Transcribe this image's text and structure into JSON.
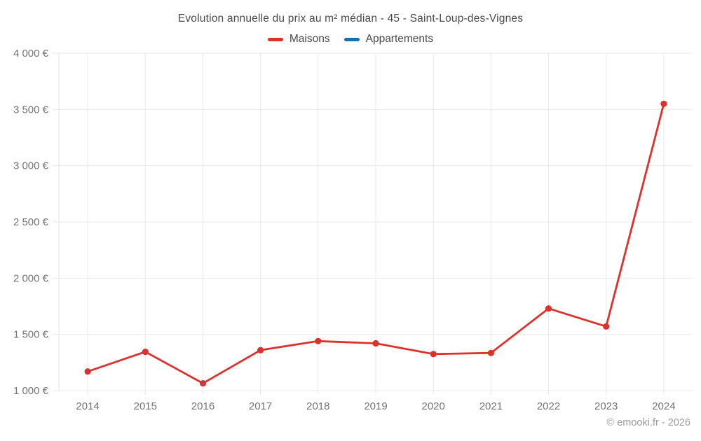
{
  "title": "Evolution annuelle du prix au m² médian - 45 - Saint-Loup-des-Vignes",
  "footer_credit": "© emooki.fr - 2026",
  "colors": {
    "maisons": "#dd322c",
    "appartements": "#1b6fa8",
    "grid": "#e9e9e9",
    "axis_border": "#e3e3e3"
  },
  "chart_data": {
    "type": "line",
    "title": "Evolution annuelle du prix au m² médian - 45 - Saint-Loup-des-Vignes",
    "categories": [
      "2014",
      "2015",
      "2016",
      "2017",
      "2018",
      "2019",
      "2020",
      "2021",
      "2022",
      "2023",
      "2024"
    ],
    "series": [
      {
        "name": "Maisons",
        "color": "#dd322c",
        "values": [
          1170,
          1345,
          1065,
          1360,
          1440,
          1420,
          1325,
          1335,
          1730,
          1570,
          3550
        ]
      },
      {
        "name": "Appartements",
        "color": "#1b6fa8",
        "values": []
      }
    ],
    "xlabel": "",
    "ylabel": "",
    "ylim": [
      1000,
      4000
    ],
    "yticks": [
      {
        "value": 1000,
        "label": "1 000 €"
      },
      {
        "value": 1500,
        "label": "1 500 €"
      },
      {
        "value": 2000,
        "label": "2 000 €"
      },
      {
        "value": 2500,
        "label": "2 500 €"
      },
      {
        "value": 3000,
        "label": "3 000 €"
      },
      {
        "value": 3500,
        "label": "3 500 €"
      },
      {
        "value": 4000,
        "label": "4 000 €"
      }
    ],
    "grid": true,
    "legend_position": "top"
  }
}
